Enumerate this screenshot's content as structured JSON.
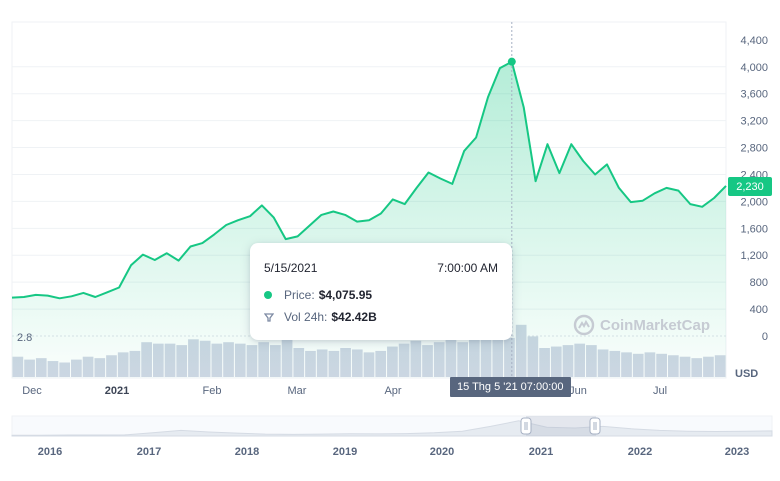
{
  "chart_data": {
    "type": "area",
    "x_labels": [
      "Dec",
      "2021",
      "Feb",
      "Mar",
      "Apr",
      "Jun",
      "Jul"
    ],
    "y_ticks": [
      "4,400",
      "4,000",
      "3,600",
      "3,200",
      "2,800",
      "2,400",
      "2,000",
      "1,600",
      "1,200",
      "800",
      "400",
      "0"
    ],
    "y_min": 0,
    "y_max": 4400,
    "y_unit": "USD",
    "price": [
      570,
      580,
      610,
      600,
      560,
      590,
      640,
      580,
      650,
      720,
      1050,
      1210,
      1130,
      1230,
      1120,
      1330,
      1380,
      1510,
      1650,
      1720,
      1780,
      1940,
      1760,
      1440,
      1480,
      1640,
      1800,
      1850,
      1800,
      1700,
      1720,
      1820,
      2030,
      1960,
      2200,
      2430,
      2340,
      2260,
      2750,
      2950,
      3550,
      3980,
      4076,
      3400,
      2300,
      2850,
      2420,
      2850,
      2600,
      2400,
      2550,
      2200,
      1990,
      2010,
      2120,
      2200,
      2160,
      1960,
      1920,
      2050,
      2230
    ],
    "volume": [
      14,
      12,
      13,
      11,
      10,
      12,
      14,
      13,
      15,
      17,
      18,
      24,
      23,
      23,
      22,
      26,
      25,
      23,
      24,
      23,
      22,
      24,
      22,
      30,
      20,
      18,
      19,
      18,
      20,
      19,
      17,
      18,
      21,
      23,
      25,
      22,
      24,
      26,
      24,
      27,
      32,
      29,
      27,
      36,
      28,
      20,
      21,
      22,
      23,
      22,
      19,
      18,
      17,
      16,
      17,
      16,
      15,
      14,
      13,
      14,
      15
    ],
    "volume_label": "2.8",
    "current_price": "2,230",
    "tooltip": {
      "date": "5/15/2021",
      "time": "7:00:00 AM",
      "price_label": "Price:",
      "price_value": "$4,075.95",
      "vol_label": "Vol 24h:",
      "vol_value": "$42.42B"
    },
    "crosshair_label": "15 Thg 5 '21   07:00:00",
    "navigator_years": [
      "2016",
      "2017",
      "2018",
      "2019",
      "2020",
      "2021",
      "2022",
      "2023"
    ],
    "grid": true,
    "watermark": "CoinMarketCap"
  },
  "colors": {
    "line": "#16c784",
    "volume_bar": "#cfd6e4",
    "grid": "#eff2f5",
    "text": "#58667e"
  }
}
